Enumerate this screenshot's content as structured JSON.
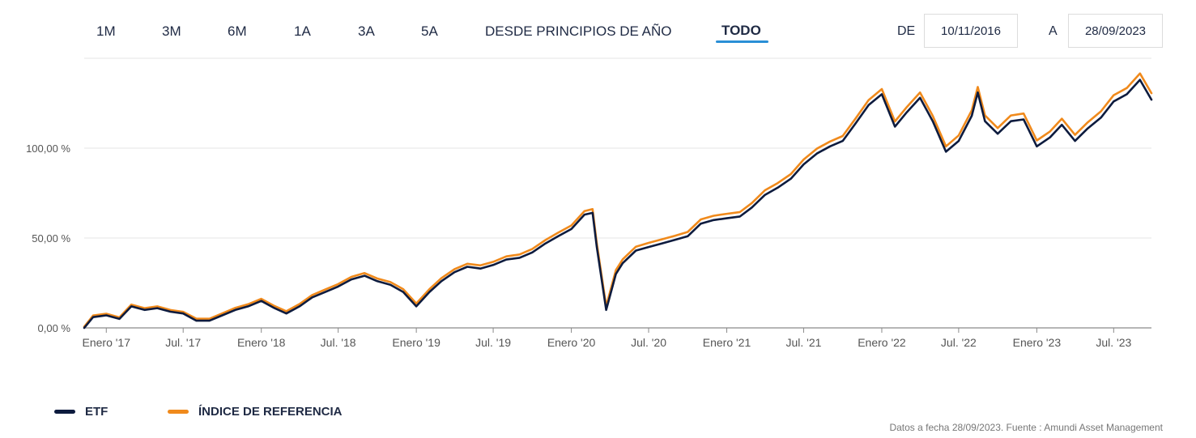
{
  "range_buttons": [
    {
      "label": "1M",
      "active": false
    },
    {
      "label": "3M",
      "active": false
    },
    {
      "label": "6M",
      "active": false
    },
    {
      "label": "1A",
      "active": false
    },
    {
      "label": "3A",
      "active": false
    },
    {
      "label": "5A",
      "active": false
    },
    {
      "label": "DESDE PRINCIPIOS DE AÑO",
      "active": false
    },
    {
      "label": "TODO",
      "active": true
    }
  ],
  "date_range": {
    "from_label": "DE",
    "from_value": "10/11/2016",
    "to_label": "A",
    "to_value": "28/09/2023"
  },
  "legend": [
    {
      "label": "ETF",
      "color": "#0d1b3e"
    },
    {
      "label": "ÍNDICE DE REFERENCIA",
      "color": "#f08a1c"
    }
  ],
  "footnote": "Datos a fecha 28/09/2023. Fuente : Amundi Asset Management",
  "colors": {
    "etf": "#0d1b3e",
    "index": "#f08a1c",
    "accent": "#2a8fd6",
    "grid": "#e6e6e6"
  },
  "chart_data": {
    "type": "line",
    "x_start": "2016-11-10",
    "x_end": "2023-09-28",
    "xlim": [
      "2016-11-10",
      "2023-09-28"
    ],
    "ylim": [
      0,
      150
    ],
    "y_ticks": [
      0,
      50,
      100
    ],
    "y_tick_labels": [
      "0,00 %",
      "50,00 %",
      "100,00 %"
    ],
    "x_ticks": [
      "2017-01-01",
      "2017-07-01",
      "2018-01-01",
      "2018-07-01",
      "2019-01-01",
      "2019-07-01",
      "2020-01-01",
      "2020-07-01",
      "2021-01-01",
      "2021-07-01",
      "2022-01-01",
      "2022-07-01",
      "2023-01-01",
      "2023-07-01"
    ],
    "x_tick_labels": [
      "Enero '17",
      "Jul. '17",
      "Enero '18",
      "Jul. '18",
      "Enero '19",
      "Jul. '19",
      "Enero '20",
      "Jul. '20",
      "Enero '21",
      "Jul. '21",
      "Enero '22",
      "Jul. '22",
      "Enero '23",
      "Jul. '23"
    ],
    "grid": true,
    "legend_position": "bottom-left",
    "series": [
      {
        "name": "ETF",
        "color": "#0d1b3e",
        "points": [
          [
            "2016-11-10",
            0
          ],
          [
            "2016-12-01",
            6
          ],
          [
            "2017-01-01",
            7
          ],
          [
            "2017-02-01",
            5
          ],
          [
            "2017-03-01",
            12
          ],
          [
            "2017-04-01",
            10
          ],
          [
            "2017-05-01",
            11
          ],
          [
            "2017-06-01",
            9
          ],
          [
            "2017-07-01",
            8
          ],
          [
            "2017-08-01",
            4
          ],
          [
            "2017-09-01",
            4
          ],
          [
            "2017-10-01",
            7
          ],
          [
            "2017-11-01",
            10
          ],
          [
            "2017-12-01",
            12
          ],
          [
            "2018-01-01",
            15
          ],
          [
            "2018-02-01",
            11
          ],
          [
            "2018-03-01",
            8
          ],
          [
            "2018-04-01",
            12
          ],
          [
            "2018-05-01",
            17
          ],
          [
            "2018-06-01",
            20
          ],
          [
            "2018-07-01",
            23
          ],
          [
            "2018-08-01",
            27
          ],
          [
            "2018-09-01",
            29
          ],
          [
            "2018-10-01",
            26
          ],
          [
            "2018-11-01",
            24
          ],
          [
            "2018-12-01",
            20
          ],
          [
            "2019-01-01",
            12
          ],
          [
            "2019-02-01",
            20
          ],
          [
            "2019-03-01",
            26
          ],
          [
            "2019-04-01",
            31
          ],
          [
            "2019-05-01",
            34
          ],
          [
            "2019-06-01",
            33
          ],
          [
            "2019-07-01",
            35
          ],
          [
            "2019-08-01",
            38
          ],
          [
            "2019-09-01",
            39
          ],
          [
            "2019-10-01",
            42
          ],
          [
            "2019-11-01",
            47
          ],
          [
            "2019-12-01",
            51
          ],
          [
            "2020-01-01",
            55
          ],
          [
            "2020-02-01",
            63
          ],
          [
            "2020-02-20",
            64
          ],
          [
            "2020-03-01",
            45
          ],
          [
            "2020-03-23",
            10
          ],
          [
            "2020-04-15",
            30
          ],
          [
            "2020-05-01",
            36
          ],
          [
            "2020-06-01",
            43
          ],
          [
            "2020-07-01",
            45
          ],
          [
            "2020-08-01",
            47
          ],
          [
            "2020-09-01",
            49
          ],
          [
            "2020-10-01",
            51
          ],
          [
            "2020-11-01",
            58
          ],
          [
            "2020-12-01",
            60
          ],
          [
            "2021-01-01",
            61
          ],
          [
            "2021-02-01",
            62
          ],
          [
            "2021-03-01",
            67
          ],
          [
            "2021-04-01",
            74
          ],
          [
            "2021-05-01",
            78
          ],
          [
            "2021-06-01",
            83
          ],
          [
            "2021-07-01",
            91
          ],
          [
            "2021-08-01",
            97
          ],
          [
            "2021-09-01",
            101
          ],
          [
            "2021-10-01",
            104
          ],
          [
            "2021-11-01",
            114
          ],
          [
            "2021-12-01",
            124
          ],
          [
            "2022-01-01",
            130
          ],
          [
            "2022-02-01",
            112
          ],
          [
            "2022-03-01",
            120
          ],
          [
            "2022-04-01",
            128
          ],
          [
            "2022-05-01",
            115
          ],
          [
            "2022-06-01",
            98
          ],
          [
            "2022-07-01",
            104
          ],
          [
            "2022-08-01",
            118
          ],
          [
            "2022-08-15",
            131
          ],
          [
            "2022-09-01",
            115
          ],
          [
            "2022-10-01",
            108
          ],
          [
            "2022-11-01",
            115
          ],
          [
            "2022-12-01",
            116
          ],
          [
            "2023-01-01",
            101
          ],
          [
            "2023-02-01",
            106
          ],
          [
            "2023-03-01",
            113
          ],
          [
            "2023-04-01",
            104
          ],
          [
            "2023-05-01",
            111
          ],
          [
            "2023-06-01",
            117
          ],
          [
            "2023-07-01",
            126
          ],
          [
            "2023-08-01",
            130
          ],
          [
            "2023-09-01",
            138
          ],
          [
            "2023-09-28",
            127
          ]
        ]
      },
      {
        "name": "ÍNDICE DE REFERENCIA",
        "color": "#f08a1c",
        "points": [
          [
            "2016-11-10",
            0
          ],
          [
            "2016-12-01",
            6.2
          ],
          [
            "2017-01-01",
            7.2
          ],
          [
            "2017-02-01",
            5.2
          ],
          [
            "2017-03-01",
            12.3
          ],
          [
            "2017-04-01",
            10.3
          ],
          [
            "2017-05-01",
            11.3
          ],
          [
            "2017-06-01",
            9.3
          ],
          [
            "2017-07-01",
            8.3
          ],
          [
            "2017-08-01",
            4.4
          ],
          [
            "2017-09-01",
            4.4
          ],
          [
            "2017-10-01",
            7.4
          ],
          [
            "2017-11-01",
            10.5
          ],
          [
            "2017-12-01",
            12.5
          ],
          [
            "2018-01-01",
            15.5
          ],
          [
            "2018-02-01",
            11.5
          ],
          [
            "2018-03-01",
            8.6
          ],
          [
            "2018-04-01",
            12.6
          ],
          [
            "2018-05-01",
            17.6
          ],
          [
            "2018-06-01",
            20.7
          ],
          [
            "2018-07-01",
            23.7
          ],
          [
            "2018-08-01",
            27.7
          ],
          [
            "2018-09-01",
            29.8
          ],
          [
            "2018-10-01",
            26.8
          ],
          [
            "2018-11-01",
            24.8
          ],
          [
            "2018-12-01",
            20.9
          ],
          [
            "2019-01-01",
            12.9
          ],
          [
            "2019-02-01",
            20.9
          ],
          [
            "2019-03-01",
            27
          ],
          [
            "2019-04-01",
            32
          ],
          [
            "2019-05-01",
            35
          ],
          [
            "2019-06-01",
            34.1
          ],
          [
            "2019-07-01",
            36.1
          ],
          [
            "2019-08-01",
            39.1
          ],
          [
            "2019-09-01",
            40.2
          ],
          [
            "2019-10-01",
            43.2
          ],
          [
            "2019-11-01",
            48.2
          ],
          [
            "2019-12-01",
            52.3
          ],
          [
            "2020-01-01",
            56.3
          ],
          [
            "2020-02-01",
            64.3
          ],
          [
            "2020-02-20",
            65.4
          ],
          [
            "2020-03-01",
            46.4
          ],
          [
            "2020-03-23",
            11.4
          ],
          [
            "2020-04-15",
            31.5
          ],
          [
            "2020-05-01",
            37.5
          ],
          [
            "2020-06-01",
            44.5
          ],
          [
            "2020-07-01",
            46.6
          ],
          [
            "2020-08-01",
            48.6
          ],
          [
            "2020-09-01",
            50.6
          ],
          [
            "2020-10-01",
            52.7
          ],
          [
            "2020-11-01",
            59.7
          ],
          [
            "2020-12-01",
            61.7
          ],
          [
            "2021-01-01",
            62.8
          ],
          [
            "2021-02-01",
            63.8
          ],
          [
            "2021-03-01",
            68.8
          ],
          [
            "2021-04-01",
            75.9
          ],
          [
            "2021-05-01",
            79.9
          ],
          [
            "2021-06-01",
            84.9
          ],
          [
            "2021-07-01",
            93
          ],
          [
            "2021-08-01",
            99
          ],
          [
            "2021-09-01",
            103
          ],
          [
            "2021-10-01",
            106.1
          ],
          [
            "2021-11-01",
            116.1
          ],
          [
            "2021-12-01",
            126.1
          ],
          [
            "2022-01-01",
            132.2
          ],
          [
            "2022-02-01",
            114.2
          ],
          [
            "2022-03-01",
            122.2
          ],
          [
            "2022-04-01",
            130.3
          ],
          [
            "2022-05-01",
            117.3
          ],
          [
            "2022-06-01",
            100.3
          ],
          [
            "2022-07-01",
            106.4
          ],
          [
            "2022-08-01",
            120.4
          ],
          [
            "2022-08-15",
            133.4
          ],
          [
            "2022-09-01",
            117.5
          ],
          [
            "2022-10-01",
            110.5
          ],
          [
            "2022-11-01",
            117.5
          ],
          [
            "2022-12-01",
            118.6
          ],
          [
            "2023-01-01",
            103.6
          ],
          [
            "2023-02-01",
            108.6
          ],
          [
            "2023-03-01",
            115.7
          ],
          [
            "2023-04-01",
            106.7
          ],
          [
            "2023-05-01",
            113.7
          ],
          [
            "2023-06-01",
            119.8
          ],
          [
            "2023-07-01",
            128.8
          ],
          [
            "2023-08-01",
            132.8
          ],
          [
            "2023-09-01",
            140.9
          ],
          [
            "2023-09-28",
            129.9
          ]
        ]
      }
    ]
  }
}
